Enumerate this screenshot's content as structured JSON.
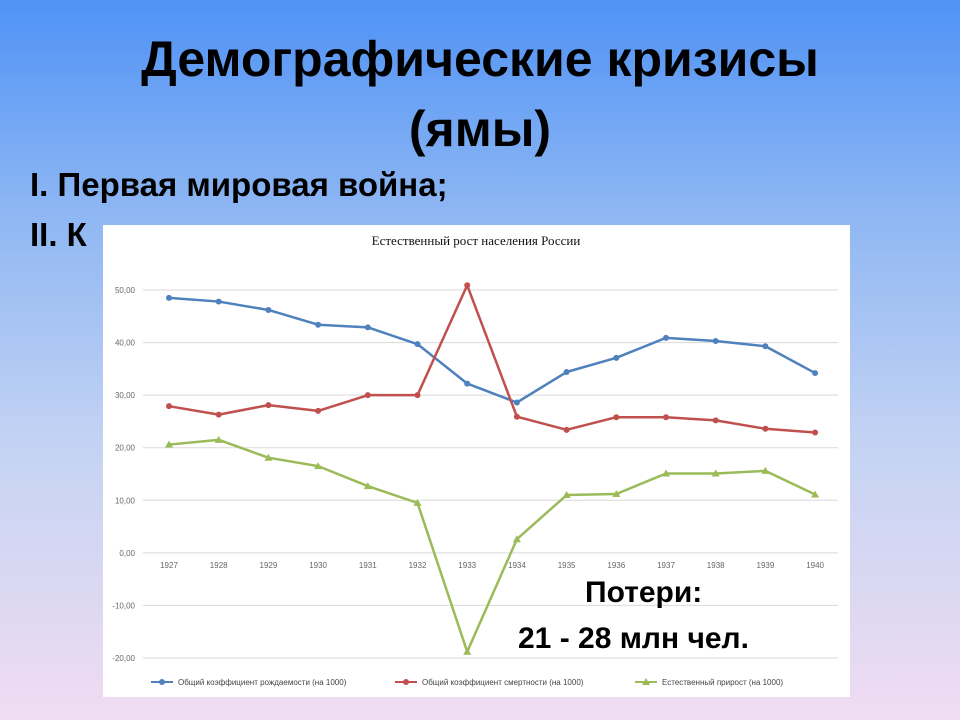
{
  "title_line1": "Демографические кризисы",
  "title_line2": "(ямы)",
  "list": [
    "I. Первая мировая война;",
    "II. К"
  ],
  "losses": {
    "label": "Потери:",
    "value": "21 - 28 млн чел."
  },
  "chart_data": {
    "type": "line",
    "title": "Естественный рост населения России",
    "categories": [
      "1927",
      "1928",
      "1929",
      "1930",
      "1931",
      "1932",
      "1933",
      "1934",
      "1935",
      "1936",
      "1937",
      "1938",
      "1939",
      "1940"
    ],
    "ylim": [
      -20,
      50
    ],
    "yticks": [
      "50,00",
      "40,00",
      "30,00",
      "20,00",
      "10,00",
      "0,00",
      "-10,00",
      "-20,00"
    ],
    "grid": true,
    "legend_position": "bottom",
    "series": [
      {
        "name": "Общий коэффициент рождаемости (на 1000)",
        "color": "#4f81bd",
        "marker": "circle",
        "values": [
          48.5,
          47.8,
          46.2,
          43.4,
          42.9,
          39.7,
          32.2,
          28.6,
          34.4,
          37.1,
          40.9,
          40.3,
          39.3,
          34.2
        ]
      },
      {
        "name": "Общий коэффициент смертности (на 1000)",
        "color": "#c0504d",
        "marker": "circle",
        "values": [
          27.9,
          26.3,
          28.1,
          27.0,
          30.0,
          30.0,
          50.9,
          25.9,
          23.4,
          25.8,
          25.8,
          25.2,
          23.6,
          22.9
        ]
      },
      {
        "name": "Естественный прирост (на 1000)",
        "color": "#9bbb59",
        "marker": "triangle",
        "values": [
          20.6,
          21.5,
          18.1,
          16.5,
          12.7,
          9.5,
          -18.8,
          2.6,
          11.0,
          11.2,
          15.1,
          15.1,
          15.6,
          11.1
        ]
      }
    ]
  }
}
